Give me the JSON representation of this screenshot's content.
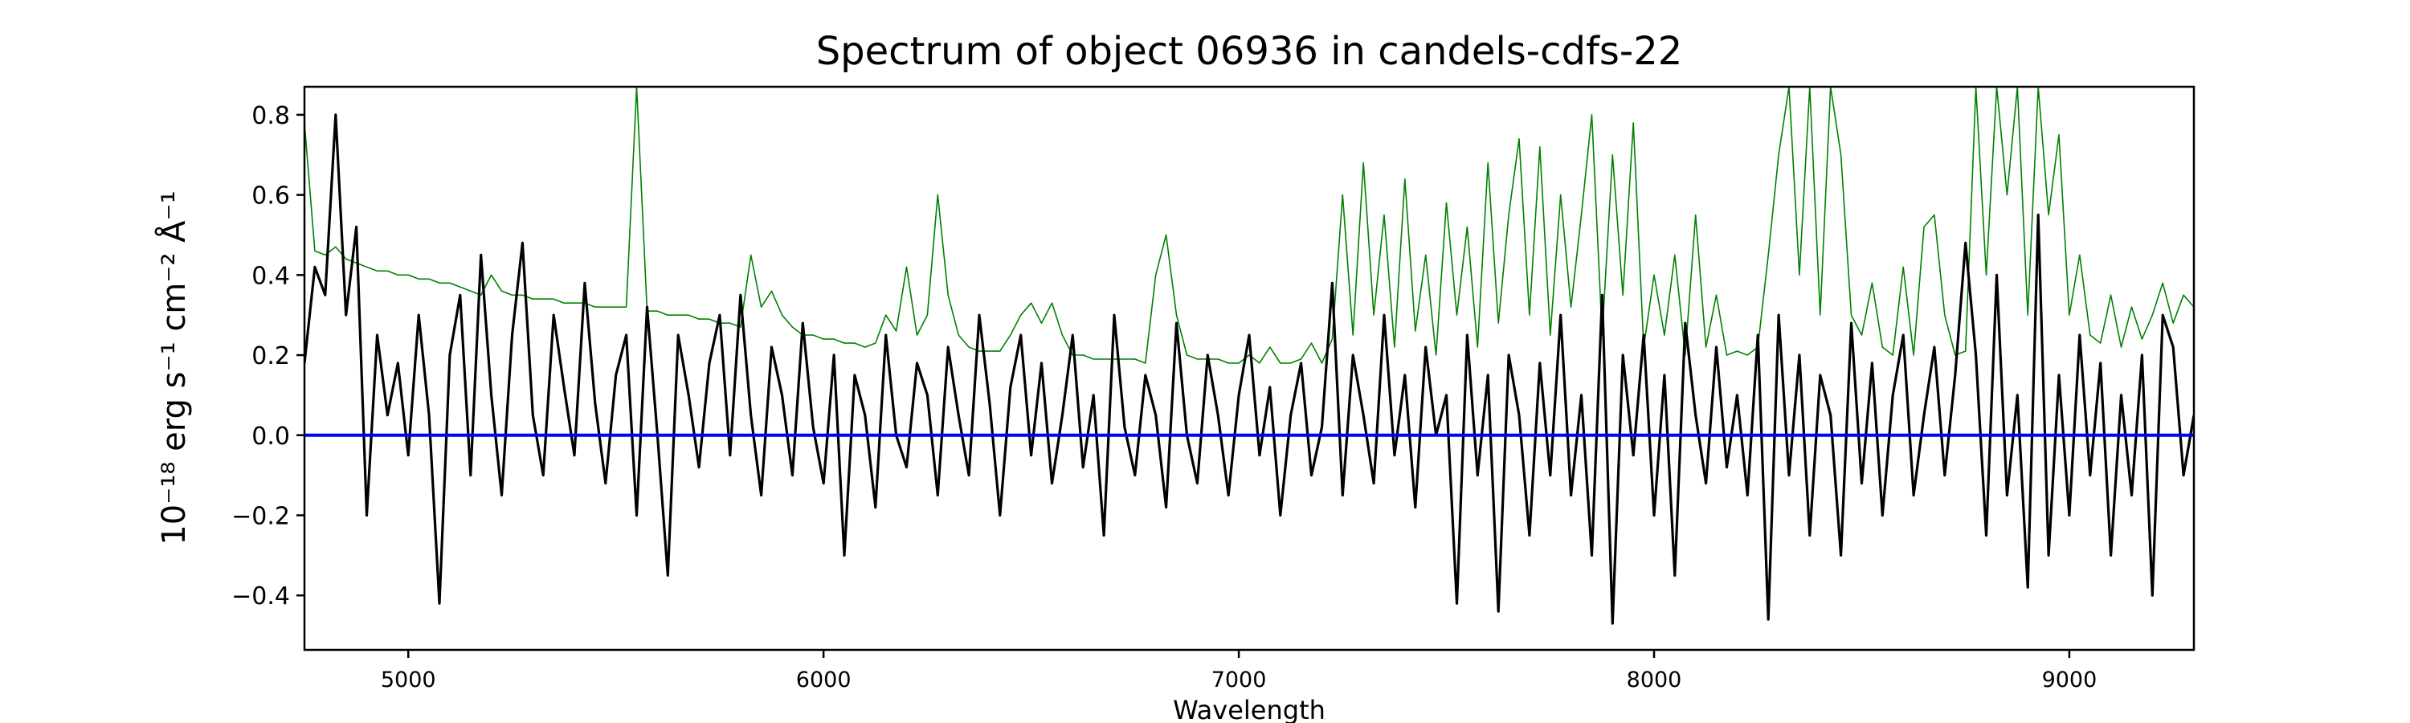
{
  "chart_data": {
    "type": "line",
    "title": "Spectrum of object 06936 in candels-cdfs-22",
    "xlabel": "Wavelength",
    "ylabel": "10⁻¹⁸ erg s⁻¹ cm⁻² Å⁻¹",
    "xlim": [
      4750,
      9300
    ],
    "ylim": [
      -0.536,
      0.87
    ],
    "xticks": [
      5000,
      6000,
      7000,
      8000,
      9000
    ],
    "xtick_labels": [
      "5000",
      "6000",
      "7000",
      "8000",
      "9000"
    ],
    "yticks": [
      -0.4,
      -0.2,
      0.0,
      0.2,
      0.4,
      0.6,
      0.8
    ],
    "ytick_labels": [
      "−0.4",
      "−0.2",
      "0.0",
      "0.2",
      "0.4",
      "0.6",
      "0.8"
    ],
    "grid": false,
    "x": [
      4750,
      4775,
      4800,
      4825,
      4850,
      4875,
      4900,
      4925,
      4950,
      4975,
      5000,
      5025,
      5050,
      5075,
      5100,
      5125,
      5150,
      5175,
      5200,
      5225,
      5250,
      5275,
      5300,
      5325,
      5350,
      5375,
      5400,
      5425,
      5450,
      5475,
      5500,
      5525,
      5550,
      5575,
      5600,
      5625,
      5650,
      5675,
      5700,
      5725,
      5750,
      5775,
      5800,
      5825,
      5850,
      5875,
      5900,
      5925,
      5950,
      5975,
      6000,
      6025,
      6050,
      6075,
      6100,
      6125,
      6150,
      6175,
      6200,
      6225,
      6250,
      6275,
      6300,
      6325,
      6350,
      6375,
      6400,
      6425,
      6450,
      6475,
      6500,
      6525,
      6550,
      6575,
      6600,
      6625,
      6650,
      6675,
      6700,
      6725,
      6750,
      6775,
      6800,
      6825,
      6850,
      6875,
      6900,
      6925,
      6950,
      6975,
      7000,
      7025,
      7050,
      7075,
      7100,
      7125,
      7150,
      7175,
      7200,
      7225,
      7250,
      7275,
      7300,
      7325,
      7350,
      7375,
      7400,
      7425,
      7450,
      7475,
      7500,
      7525,
      7550,
      7575,
      7600,
      7625,
      7650,
      7675,
      7700,
      7725,
      7750,
      7775,
      7800,
      7825,
      7850,
      7875,
      7900,
      7925,
      7950,
      7975,
      8000,
      8025,
      8050,
      8075,
      8100,
      8125,
      8150,
      8175,
      8200,
      8225,
      8250,
      8275,
      8300,
      8325,
      8350,
      8375,
      8400,
      8425,
      8450,
      8475,
      8500,
      8525,
      8550,
      8575,
      8600,
      8625,
      8650,
      8675,
      8700,
      8725,
      8750,
      8775,
      8800,
      8825,
      8850,
      8875,
      8900,
      8925,
      8950,
      8975,
      9000,
      9025,
      9050,
      9075,
      9100,
      9125,
      9150,
      9175,
      9200,
      9225,
      9250,
      9275,
      9300
    ],
    "series": [
      {
        "color": "#008000",
        "values": [
          0.78,
          0.46,
          0.45,
          0.47,
          0.44,
          0.43,
          0.42,
          0.41,
          0.41,
          0.4,
          0.4,
          0.39,
          0.39,
          0.38,
          0.38,
          0.37,
          0.36,
          0.35,
          0.4,
          0.36,
          0.35,
          0.35,
          0.34,
          0.34,
          0.34,
          0.33,
          0.33,
          0.33,
          0.32,
          0.32,
          0.32,
          0.32,
          0.87,
          0.31,
          0.31,
          0.3,
          0.3,
          0.3,
          0.29,
          0.29,
          0.28,
          0.28,
          0.27,
          0.45,
          0.32,
          0.36,
          0.3,
          0.27,
          0.25,
          0.25,
          0.24,
          0.24,
          0.23,
          0.23,
          0.22,
          0.23,
          0.3,
          0.26,
          0.42,
          0.25,
          0.3,
          0.6,
          0.35,
          0.25,
          0.22,
          0.21,
          0.21,
          0.21,
          0.25,
          0.3,
          0.33,
          0.28,
          0.33,
          0.25,
          0.2,
          0.2,
          0.19,
          0.19,
          0.19,
          0.19,
          0.19,
          0.18,
          0.4,
          0.5,
          0.3,
          0.2,
          0.19,
          0.19,
          0.19,
          0.18,
          0.18,
          0.2,
          0.18,
          0.22,
          0.18,
          0.18,
          0.19,
          0.23,
          0.18,
          0.24,
          0.6,
          0.25,
          0.68,
          0.3,
          0.55,
          0.22,
          0.64,
          0.26,
          0.45,
          0.2,
          0.58,
          0.3,
          0.52,
          0.22,
          0.68,
          0.28,
          0.55,
          0.74,
          0.3,
          0.72,
          0.25,
          0.6,
          0.32,
          0.55,
          0.8,
          0.25,
          0.7,
          0.35,
          0.78,
          0.22,
          0.4,
          0.25,
          0.45,
          0.2,
          0.55,
          0.22,
          0.35,
          0.2,
          0.21,
          0.2,
          0.22,
          0.45,
          0.7,
          0.87,
          0.4,
          0.87,
          0.3,
          0.87,
          0.7,
          0.3,
          0.25,
          0.38,
          0.22,
          0.2,
          0.42,
          0.2,
          0.52,
          0.55,
          0.3,
          0.2,
          0.21,
          0.87,
          0.4,
          0.87,
          0.6,
          0.87,
          0.3,
          0.87,
          0.55,
          0.75,
          0.3,
          0.45,
          0.25,
          0.23,
          0.35,
          0.22,
          0.32,
          0.24,
          0.3,
          0.38,
          0.28,
          0.35,
          0.32
        ]
      },
      {
        "color": "#000000",
        "values": [
          0.18,
          0.42,
          0.35,
          0.8,
          0.3,
          0.52,
          -0.2,
          0.25,
          0.05,
          0.18,
          -0.05,
          0.3,
          0.05,
          -0.42,
          0.2,
          0.35,
          -0.1,
          0.45,
          0.1,
          -0.15,
          0.25,
          0.48,
          0.05,
          -0.1,
          0.3,
          0.12,
          -0.05,
          0.38,
          0.08,
          -0.12,
          0.15,
          0.25,
          -0.2,
          0.32,
          0.0,
          -0.35,
          0.25,
          0.1,
          -0.08,
          0.18,
          0.3,
          -0.05,
          0.35,
          0.05,
          -0.15,
          0.22,
          0.1,
          -0.1,
          0.28,
          0.02,
          -0.12,
          0.2,
          -0.3,
          0.15,
          0.05,
          -0.18,
          0.25,
          0.0,
          -0.08,
          0.18,
          0.1,
          -0.15,
          0.22,
          0.05,
          -0.1,
          0.3,
          0.08,
          -0.2,
          0.12,
          0.25,
          -0.05,
          0.18,
          -0.12,
          0.05,
          0.25,
          -0.08,
          0.1,
          -0.25,
          0.3,
          0.02,
          -0.1,
          0.15,
          0.05,
          -0.18,
          0.28,
          0.0,
          -0.12,
          0.2,
          0.05,
          -0.15,
          0.1,
          0.25,
          -0.05,
          0.12,
          -0.2,
          0.05,
          0.18,
          -0.1,
          0.02,
          0.38,
          -0.15,
          0.2,
          0.05,
          -0.12,
          0.3,
          -0.05,
          0.15,
          -0.18,
          0.22,
          0.0,
          0.1,
          -0.42,
          0.25,
          -0.1,
          0.15,
          -0.44,
          0.2,
          0.05,
          -0.25,
          0.18,
          -0.1,
          0.3,
          -0.15,
          0.1,
          -0.3,
          0.35,
          -0.47,
          0.2,
          -0.05,
          0.25,
          -0.2,
          0.15,
          -0.35,
          0.28,
          0.05,
          -0.12,
          0.22,
          -0.08,
          0.1,
          -0.15,
          0.25,
          -0.46,
          0.3,
          -0.1,
          0.2,
          -0.25,
          0.15,
          0.05,
          -0.3,
          0.28,
          -0.12,
          0.18,
          -0.2,
          0.1,
          0.25,
          -0.15,
          0.05,
          0.22,
          -0.1,
          0.15,
          0.48,
          0.2,
          -0.25,
          0.4,
          -0.15,
          0.1,
          -0.38,
          0.55,
          -0.3,
          0.15,
          -0.2,
          0.25,
          -0.1,
          0.18,
          -0.3,
          0.1,
          -0.15,
          0.2,
          -0.4,
          0.3,
          0.22,
          -0.1,
          0.05
        ]
      }
    ],
    "hlines": [
      {
        "y": 0.0,
        "color": "#0000ff"
      }
    ]
  }
}
